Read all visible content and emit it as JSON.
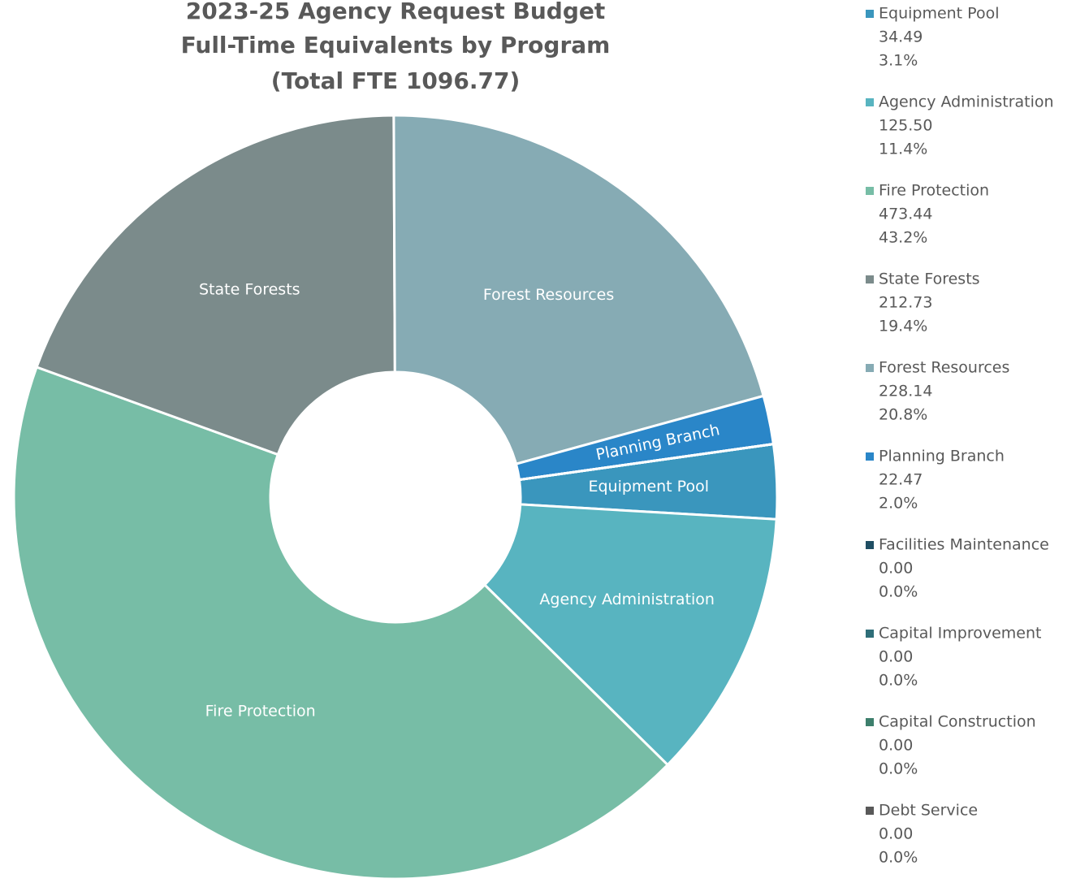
{
  "chart_data": {
    "type": "donut",
    "title": [
      "2023-25 Agency Request Budget",
      "Full-Time Equivalents by Program",
      "(Total FTE 1096.77)"
    ],
    "categories": [
      "Equipment Pool",
      "Agency Administration",
      "Fire Protection",
      "State Forests",
      "Forest Resources",
      "Planning Branch",
      "Facilities Maintenance",
      "Capital Improvement",
      "Capital Construction",
      "Debt Service"
    ],
    "values": [
      34.49,
      125.5,
      473.44,
      212.73,
      228.14,
      22.47,
      0,
      0,
      0,
      0
    ],
    "value_labels": [
      "34.49",
      "125.50",
      "473.44",
      "212.73",
      "228.14",
      "22.47",
      "0.00",
      "0.00",
      "0.00",
      "0.00"
    ],
    "percent_labels": [
      "3.1%",
      "11.4%",
      "43.2%",
      "19.4%",
      "20.8%",
      "2.0%",
      "0.0%",
      "0.0%",
      "0.0%",
      "0.0%"
    ],
    "colors": [
      "#3a96bd",
      "#58b4c0",
      "#77bda6",
      "#7b8b8b",
      "#86abb4",
      "#2a86c8",
      "#1f4e63",
      "#2e6e78",
      "#3d7f6c",
      "#595959"
    ],
    "start_angle": 82,
    "legend": "right"
  }
}
